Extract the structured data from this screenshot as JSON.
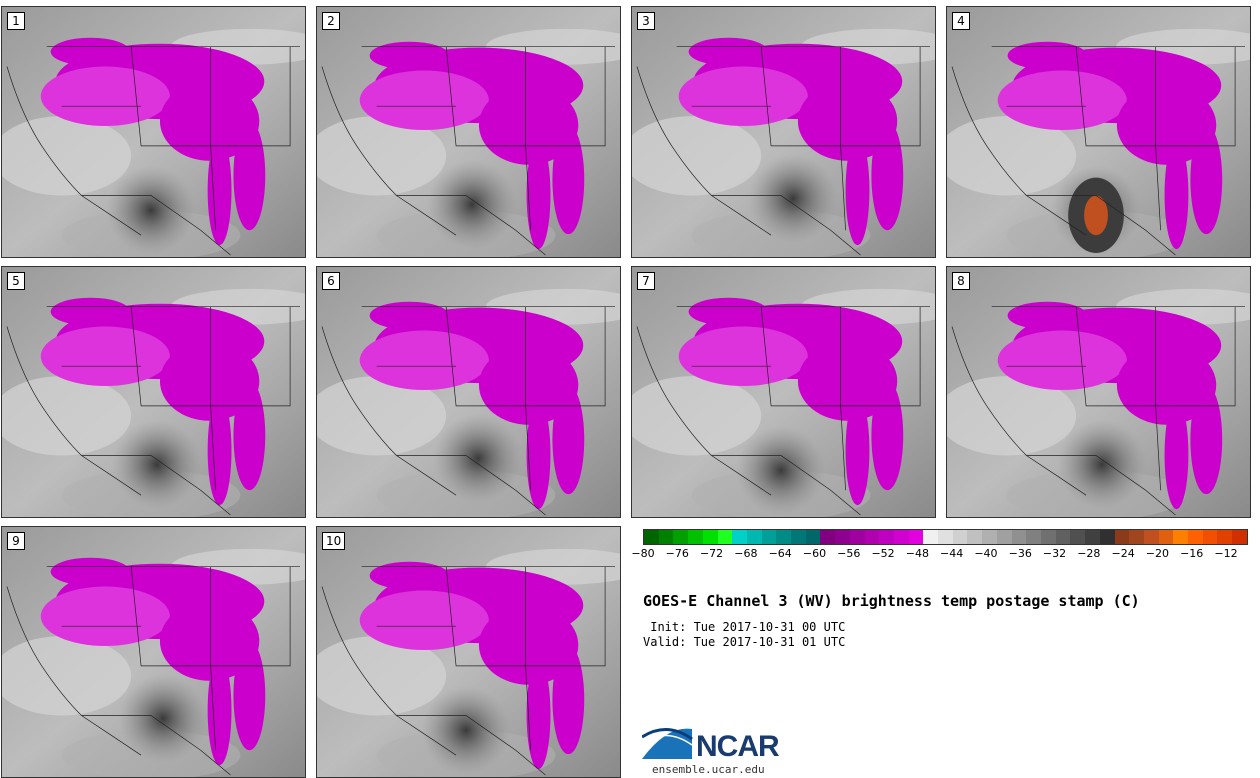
{
  "title": "GOES-E Channel 3 (WV) brightness temp postage stamp (C)",
  "init_label": " Init: Tue 2017-10-31 00 UTC",
  "valid_label": "Valid: Tue 2017-10-31 01 UTC",
  "logo_text": "NCAR",
  "logo_url": "ensemble.ucar.edu",
  "members": [
    "1",
    "2",
    "3",
    "4",
    "5",
    "6",
    "7",
    "8",
    "9",
    "10"
  ],
  "colorbar": {
    "tick_labels": [
      "−80",
      "−76",
      "−72",
      "−68",
      "−64",
      "−60",
      "−56",
      "−52",
      "−48",
      "−44",
      "−40",
      "−36",
      "−32",
      "−28",
      "−24",
      "−20",
      "−16",
      "−12"
    ],
    "colors": [
      "#006400",
      "#008000",
      "#00a000",
      "#00c000",
      "#00e000",
      "#20ff20",
      "#00d0c8",
      "#00b8b0",
      "#00a098",
      "#008c86",
      "#007878",
      "#006868",
      "#800080",
      "#900090",
      "#a000a0",
      "#b000b0",
      "#c000c0",
      "#d000d0",
      "#e000e0",
      "#f0f0f0",
      "#e0e0e0",
      "#d0d0d0",
      "#c0c0c0",
      "#b0b0b0",
      "#a0a0a0",
      "#909090",
      "#808080",
      "#707070",
      "#606060",
      "#505050",
      "#404040",
      "#303030",
      "#8b3a1a",
      "#a0451d",
      "#c05020",
      "#e06010",
      "#ff7f00",
      "#ff6000",
      "#f05000",
      "#e04000",
      "#d03000"
    ]
  },
  "colors": {
    "moist": "#cc00cc",
    "moist_light": "#dd33dd",
    "dry": "#555555",
    "hot": "#c05020"
  }
}
